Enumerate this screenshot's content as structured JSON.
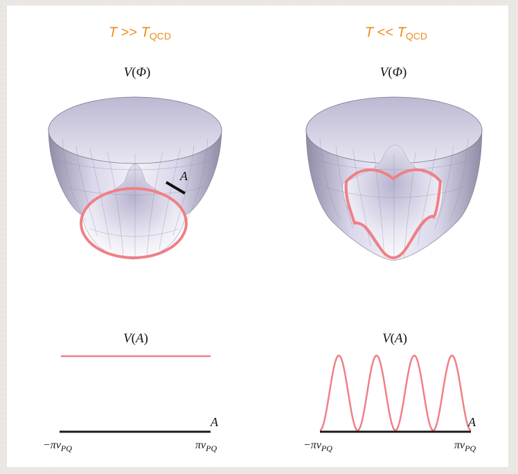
{
  "panels": [
    {
      "title_T": "T",
      "title_op": ">>",
      "title_Tq": "T",
      "title_sub": "QCD",
      "potential_fn": "V",
      "potential_arg": "Φ",
      "marker_label": "A",
      "plot_fn": "V",
      "plot_arg": "A",
      "axis_label": "A",
      "tick_left": "−πv",
      "tick_left_sub": "PQ",
      "tick_right": "πv",
      "tick_right_sub": "PQ"
    },
    {
      "title_T": "T",
      "title_op": "<<",
      "title_Tq": "T",
      "title_sub": "QCD",
      "potential_fn": "V",
      "potential_arg": "Φ",
      "plot_fn": "V",
      "plot_arg": "A",
      "axis_label": "A",
      "tick_left": "−πv",
      "tick_left_sub": "PQ",
      "tick_right": "πv",
      "tick_right_sub": "PQ"
    }
  ],
  "colors": {
    "title": "#f08a1c",
    "curve": "#f07f86",
    "axis": "#1a1a1a",
    "surface_light": "#ffffff",
    "surface_mid": "#d9d6ea",
    "surface_dark": "#8f8ba6"
  },
  "plots": {
    "left": {
      "shape": "flat",
      "level": 1.0
    },
    "right": {
      "shape": "cosine",
      "periods": 4
    }
  }
}
